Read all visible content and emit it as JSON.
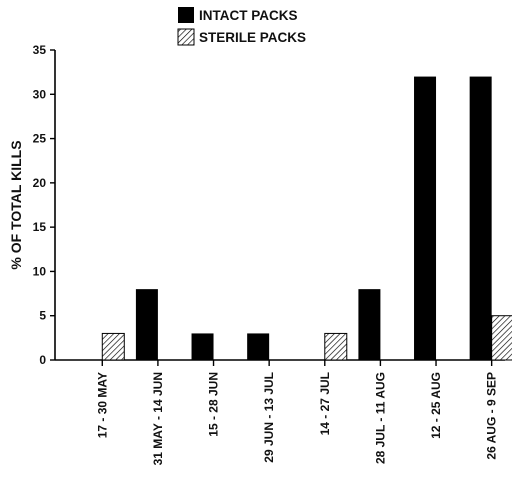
{
  "chart_data": {
    "type": "bar",
    "ylabel": "% OF TOTAL KILLS",
    "ylim": [
      0,
      35
    ],
    "yticks": [
      "0",
      "5",
      "10",
      "15",
      "20",
      "25",
      "30",
      "35"
    ],
    "categories": [
      "17 - 30 MAY",
      "31 MAY - 14 JUN",
      "15 - 28 JUN",
      "29 JUN - 13 JUL",
      "14 - 27 JUL",
      "28 JUL - 11 AUG",
      "12 - 25 AUG",
      "26 AUG - 9 SEP"
    ],
    "series": [
      {
        "name": "INTACT PACKS",
        "fill": "solid",
        "color": "#000000",
        "values": [
          0,
          8,
          3,
          3,
          0,
          8,
          32,
          32
        ]
      },
      {
        "name": "STERILE PACKS",
        "fill": "hatched",
        "color": "#000000",
        "values": [
          3,
          0,
          0,
          0,
          3,
          0,
          0,
          5
        ]
      }
    ],
    "legend": "top-center",
    "grid": false
  }
}
